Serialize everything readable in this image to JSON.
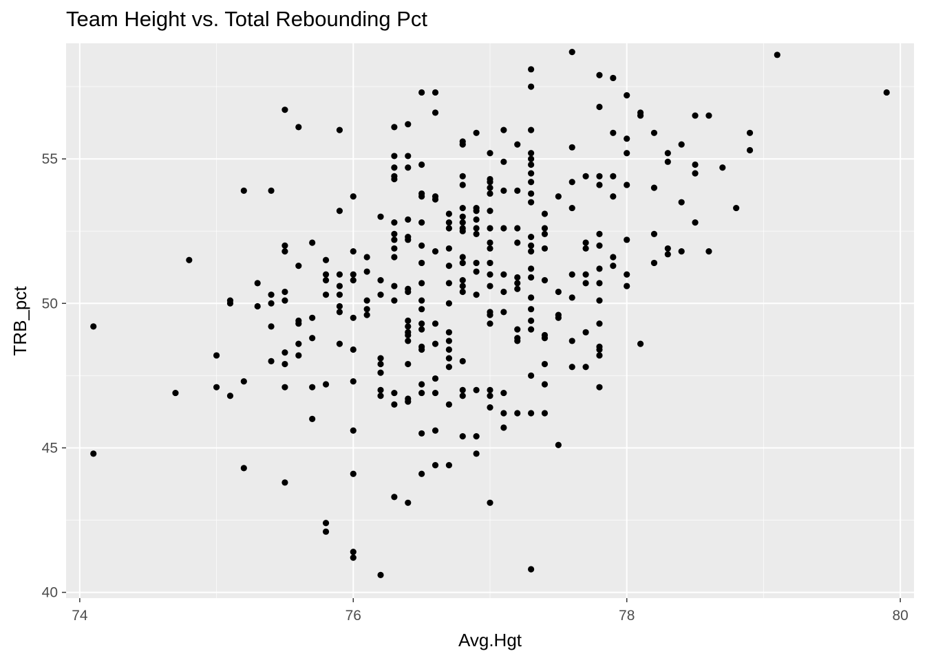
{
  "chart_data": {
    "type": "scatter",
    "title": "Team Height vs. Total Rebounding Pct",
    "xlabel": "Avg.Hgt",
    "ylabel": "TRB_pct",
    "xlim": [
      73.9,
      80.1
    ],
    "ylim": [
      39.8,
      59.0
    ],
    "x_ticks": [
      74,
      76,
      78,
      80
    ],
    "y_ticks": [
      40,
      45,
      50,
      55
    ],
    "grid": true,
    "background_color": "#ebebeb",
    "grid_color": "#ffffff",
    "point_color": "#000000",
    "points": [
      {
        "x": 74.1,
        "y": 49.2
      },
      {
        "x": 74.1,
        "y": 44.8
      },
      {
        "x": 74.7,
        "y": 46.9
      },
      {
        "x": 74.8,
        "y": 51.5
      },
      {
        "x": 75.0,
        "y": 48.2
      },
      {
        "x": 75.0,
        "y": 47.1
      },
      {
        "x": 75.1,
        "y": 50.1
      },
      {
        "x": 75.1,
        "y": 50.0
      },
      {
        "x": 75.1,
        "y": 46.8
      },
      {
        "x": 75.2,
        "y": 53.9
      },
      {
        "x": 75.2,
        "y": 47.3
      },
      {
        "x": 75.2,
        "y": 44.3
      },
      {
        "x": 75.3,
        "y": 50.7
      },
      {
        "x": 75.3,
        "y": 49.9
      },
      {
        "x": 75.4,
        "y": 53.9
      },
      {
        "x": 75.4,
        "y": 50.3
      },
      {
        "x": 75.4,
        "y": 50.0
      },
      {
        "x": 75.4,
        "y": 49.2
      },
      {
        "x": 75.4,
        "y": 48.0
      },
      {
        "x": 75.5,
        "y": 56.7
      },
      {
        "x": 75.5,
        "y": 52.0
      },
      {
        "x": 75.5,
        "y": 51.8
      },
      {
        "x": 75.5,
        "y": 50.4
      },
      {
        "x": 75.5,
        "y": 50.1
      },
      {
        "x": 75.5,
        "y": 48.3
      },
      {
        "x": 75.5,
        "y": 47.9
      },
      {
        "x": 75.5,
        "y": 47.1
      },
      {
        "x": 75.5,
        "y": 43.8
      },
      {
        "x": 75.6,
        "y": 56.1
      },
      {
        "x": 75.6,
        "y": 51.3
      },
      {
        "x": 75.6,
        "y": 49.4
      },
      {
        "x": 75.6,
        "y": 49.3
      },
      {
        "x": 75.6,
        "y": 48.6
      },
      {
        "x": 75.6,
        "y": 48.2
      },
      {
        "x": 75.7,
        "y": 52.1
      },
      {
        "x": 75.7,
        "y": 49.5
      },
      {
        "x": 75.7,
        "y": 48.8
      },
      {
        "x": 75.7,
        "y": 47.1
      },
      {
        "x": 75.7,
        "y": 46.0
      },
      {
        "x": 75.8,
        "y": 51.5
      },
      {
        "x": 75.8,
        "y": 51.0
      },
      {
        "x": 75.8,
        "y": 50.8
      },
      {
        "x": 75.8,
        "y": 50.3
      },
      {
        "x": 75.8,
        "y": 47.2
      },
      {
        "x": 75.8,
        "y": 42.4
      },
      {
        "x": 75.8,
        "y": 42.1
      },
      {
        "x": 75.9,
        "y": 56.0
      },
      {
        "x": 75.9,
        "y": 53.2
      },
      {
        "x": 75.9,
        "y": 51.0
      },
      {
        "x": 75.9,
        "y": 50.6
      },
      {
        "x": 75.9,
        "y": 50.3
      },
      {
        "x": 75.9,
        "y": 49.9
      },
      {
        "x": 75.9,
        "y": 49.7
      },
      {
        "x": 75.9,
        "y": 48.6
      },
      {
        "x": 76.0,
        "y": 53.7
      },
      {
        "x": 76.0,
        "y": 51.8
      },
      {
        "x": 76.0,
        "y": 51.0
      },
      {
        "x": 76.0,
        "y": 50.8
      },
      {
        "x": 76.0,
        "y": 49.5
      },
      {
        "x": 76.0,
        "y": 48.4
      },
      {
        "x": 76.0,
        "y": 47.3
      },
      {
        "x": 76.0,
        "y": 45.6
      },
      {
        "x": 76.0,
        "y": 44.1
      },
      {
        "x": 76.0,
        "y": 41.4
      },
      {
        "x": 76.0,
        "y": 41.2
      },
      {
        "x": 76.1,
        "y": 51.6
      },
      {
        "x": 76.1,
        "y": 51.1
      },
      {
        "x": 76.1,
        "y": 50.1
      },
      {
        "x": 76.1,
        "y": 49.8
      },
      {
        "x": 76.1,
        "y": 49.6
      },
      {
        "x": 76.2,
        "y": 53.0
      },
      {
        "x": 76.2,
        "y": 50.8
      },
      {
        "x": 76.2,
        "y": 50.3
      },
      {
        "x": 76.2,
        "y": 48.1
      },
      {
        "x": 76.2,
        "y": 47.9
      },
      {
        "x": 76.2,
        "y": 47.6
      },
      {
        "x": 76.2,
        "y": 47.0
      },
      {
        "x": 76.2,
        "y": 46.8
      },
      {
        "x": 76.2,
        "y": 40.6
      },
      {
        "x": 76.3,
        "y": 56.1
      },
      {
        "x": 76.3,
        "y": 55.1
      },
      {
        "x": 76.3,
        "y": 54.7
      },
      {
        "x": 76.3,
        "y": 54.4
      },
      {
        "x": 76.3,
        "y": 54.3
      },
      {
        "x": 76.3,
        "y": 52.8
      },
      {
        "x": 76.3,
        "y": 52.4
      },
      {
        "x": 76.3,
        "y": 52.2
      },
      {
        "x": 76.3,
        "y": 51.9
      },
      {
        "x": 76.3,
        "y": 51.6
      },
      {
        "x": 76.3,
        "y": 50.6
      },
      {
        "x": 76.3,
        "y": 50.1
      },
      {
        "x": 76.3,
        "y": 46.9
      },
      {
        "x": 76.3,
        "y": 46.5
      },
      {
        "x": 76.3,
        "y": 43.3
      },
      {
        "x": 76.4,
        "y": 56.2
      },
      {
        "x": 76.4,
        "y": 55.1
      },
      {
        "x": 76.4,
        "y": 54.7
      },
      {
        "x": 76.4,
        "y": 52.9
      },
      {
        "x": 76.4,
        "y": 52.3
      },
      {
        "x": 76.4,
        "y": 52.2
      },
      {
        "x": 76.4,
        "y": 50.5
      },
      {
        "x": 76.4,
        "y": 50.4
      },
      {
        "x": 76.4,
        "y": 49.4
      },
      {
        "x": 76.4,
        "y": 49.2
      },
      {
        "x": 76.4,
        "y": 49.0
      },
      {
        "x": 76.4,
        "y": 48.9
      },
      {
        "x": 76.4,
        "y": 48.7
      },
      {
        "x": 76.4,
        "y": 47.9
      },
      {
        "x": 76.4,
        "y": 46.7
      },
      {
        "x": 76.4,
        "y": 46.6
      },
      {
        "x": 76.4,
        "y": 43.1
      },
      {
        "x": 76.5,
        "y": 57.3
      },
      {
        "x": 76.5,
        "y": 54.8
      },
      {
        "x": 76.5,
        "y": 53.8
      },
      {
        "x": 76.5,
        "y": 53.7
      },
      {
        "x": 76.5,
        "y": 52.8
      },
      {
        "x": 76.5,
        "y": 52.0
      },
      {
        "x": 76.5,
        "y": 51.4
      },
      {
        "x": 76.5,
        "y": 50.7
      },
      {
        "x": 76.5,
        "y": 50.1
      },
      {
        "x": 76.5,
        "y": 49.8
      },
      {
        "x": 76.5,
        "y": 49.3
      },
      {
        "x": 76.5,
        "y": 49.1
      },
      {
        "x": 76.5,
        "y": 48.5
      },
      {
        "x": 76.5,
        "y": 48.4
      },
      {
        "x": 76.5,
        "y": 47.2
      },
      {
        "x": 76.5,
        "y": 46.9
      },
      {
        "x": 76.5,
        "y": 45.5
      },
      {
        "x": 76.5,
        "y": 44.1
      },
      {
        "x": 76.6,
        "y": 57.3
      },
      {
        "x": 76.6,
        "y": 56.6
      },
      {
        "x": 76.6,
        "y": 53.7
      },
      {
        "x": 76.6,
        "y": 53.6
      },
      {
        "x": 76.6,
        "y": 51.8
      },
      {
        "x": 76.6,
        "y": 49.3
      },
      {
        "x": 76.6,
        "y": 48.6
      },
      {
        "x": 76.6,
        "y": 47.4
      },
      {
        "x": 76.6,
        "y": 46.9
      },
      {
        "x": 76.6,
        "y": 45.6
      },
      {
        "x": 76.6,
        "y": 44.4
      },
      {
        "x": 76.7,
        "y": 53.1
      },
      {
        "x": 76.7,
        "y": 52.8
      },
      {
        "x": 76.7,
        "y": 52.6
      },
      {
        "x": 76.7,
        "y": 51.9
      },
      {
        "x": 76.7,
        "y": 51.3
      },
      {
        "x": 76.7,
        "y": 50.7
      },
      {
        "x": 76.7,
        "y": 50.0
      },
      {
        "x": 76.7,
        "y": 49.0
      },
      {
        "x": 76.7,
        "y": 48.7
      },
      {
        "x": 76.7,
        "y": 48.4
      },
      {
        "x": 76.7,
        "y": 48.1
      },
      {
        "x": 76.7,
        "y": 47.8
      },
      {
        "x": 76.7,
        "y": 46.5
      },
      {
        "x": 76.7,
        "y": 44.4
      },
      {
        "x": 76.8,
        "y": 55.6
      },
      {
        "x": 76.8,
        "y": 55.5
      },
      {
        "x": 76.8,
        "y": 54.4
      },
      {
        "x": 76.8,
        "y": 54.1
      },
      {
        "x": 76.8,
        "y": 53.3
      },
      {
        "x": 76.8,
        "y": 53.0
      },
      {
        "x": 76.8,
        "y": 52.8
      },
      {
        "x": 76.8,
        "y": 52.6
      },
      {
        "x": 76.8,
        "y": 52.5
      },
      {
        "x": 76.8,
        "y": 51.6
      },
      {
        "x": 76.8,
        "y": 51.4
      },
      {
        "x": 76.8,
        "y": 50.8
      },
      {
        "x": 76.8,
        "y": 50.6
      },
      {
        "x": 76.8,
        "y": 50.4
      },
      {
        "x": 76.8,
        "y": 48.0
      },
      {
        "x": 76.8,
        "y": 47.0
      },
      {
        "x": 76.8,
        "y": 46.8
      },
      {
        "x": 76.8,
        "y": 45.4
      },
      {
        "x": 76.9,
        "y": 55.9
      },
      {
        "x": 76.9,
        "y": 53.3
      },
      {
        "x": 76.9,
        "y": 53.2
      },
      {
        "x": 76.9,
        "y": 52.9
      },
      {
        "x": 76.9,
        "y": 52.6
      },
      {
        "x": 76.9,
        "y": 52.4
      },
      {
        "x": 76.9,
        "y": 51.4
      },
      {
        "x": 76.9,
        "y": 51.1
      },
      {
        "x": 76.9,
        "y": 50.3
      },
      {
        "x": 76.9,
        "y": 47.0
      },
      {
        "x": 76.9,
        "y": 45.4
      },
      {
        "x": 76.9,
        "y": 44.8
      },
      {
        "x": 77.0,
        "y": 55.2
      },
      {
        "x": 77.0,
        "y": 54.3
      },
      {
        "x": 77.0,
        "y": 54.2
      },
      {
        "x": 77.0,
        "y": 54.0
      },
      {
        "x": 77.0,
        "y": 53.8
      },
      {
        "x": 77.0,
        "y": 53.2
      },
      {
        "x": 77.0,
        "y": 52.6
      },
      {
        "x": 77.0,
        "y": 52.1
      },
      {
        "x": 77.0,
        "y": 51.9
      },
      {
        "x": 77.0,
        "y": 51.4
      },
      {
        "x": 77.0,
        "y": 51.0
      },
      {
        "x": 77.0,
        "y": 50.6
      },
      {
        "x": 77.0,
        "y": 49.7
      },
      {
        "x": 77.0,
        "y": 49.6
      },
      {
        "x": 77.0,
        "y": 49.3
      },
      {
        "x": 77.0,
        "y": 47.0
      },
      {
        "x": 77.0,
        "y": 46.8
      },
      {
        "x": 77.0,
        "y": 46.4
      },
      {
        "x": 77.0,
        "y": 43.1
      },
      {
        "x": 77.1,
        "y": 56.0
      },
      {
        "x": 77.1,
        "y": 54.9
      },
      {
        "x": 77.1,
        "y": 53.9
      },
      {
        "x": 77.1,
        "y": 52.6
      },
      {
        "x": 77.1,
        "y": 51.0
      },
      {
        "x": 77.1,
        "y": 50.4
      },
      {
        "x": 77.1,
        "y": 49.7
      },
      {
        "x": 77.1,
        "y": 46.9
      },
      {
        "x": 77.1,
        "y": 46.2
      },
      {
        "x": 77.1,
        "y": 45.7
      },
      {
        "x": 77.2,
        "y": 55.5
      },
      {
        "x": 77.2,
        "y": 53.9
      },
      {
        "x": 77.2,
        "y": 52.6
      },
      {
        "x": 77.2,
        "y": 52.1
      },
      {
        "x": 77.2,
        "y": 50.9
      },
      {
        "x": 77.2,
        "y": 50.7
      },
      {
        "x": 77.2,
        "y": 50.5
      },
      {
        "x": 77.2,
        "y": 49.1
      },
      {
        "x": 77.2,
        "y": 48.8
      },
      {
        "x": 77.2,
        "y": 48.7
      },
      {
        "x": 77.2,
        "y": 46.2
      },
      {
        "x": 77.3,
        "y": 58.1
      },
      {
        "x": 77.3,
        "y": 57.5
      },
      {
        "x": 77.3,
        "y": 56.0
      },
      {
        "x": 77.3,
        "y": 55.2
      },
      {
        "x": 77.3,
        "y": 55.0
      },
      {
        "x": 77.3,
        "y": 54.8
      },
      {
        "x": 77.3,
        "y": 54.5
      },
      {
        "x": 77.3,
        "y": 54.2
      },
      {
        "x": 77.3,
        "y": 53.8
      },
      {
        "x": 77.3,
        "y": 53.5
      },
      {
        "x": 77.3,
        "y": 52.3
      },
      {
        "x": 77.3,
        "y": 52.0
      },
      {
        "x": 77.3,
        "y": 51.8
      },
      {
        "x": 77.3,
        "y": 51.2
      },
      {
        "x": 77.3,
        "y": 50.9
      },
      {
        "x": 77.3,
        "y": 50.2
      },
      {
        "x": 77.3,
        "y": 49.8
      },
      {
        "x": 77.3,
        "y": 49.4
      },
      {
        "x": 77.3,
        "y": 49.1
      },
      {
        "x": 77.3,
        "y": 47.5
      },
      {
        "x": 77.3,
        "y": 46.2
      },
      {
        "x": 77.3,
        "y": 40.8
      },
      {
        "x": 77.4,
        "y": 53.1
      },
      {
        "x": 77.4,
        "y": 52.6
      },
      {
        "x": 77.4,
        "y": 52.4
      },
      {
        "x": 77.4,
        "y": 51.9
      },
      {
        "x": 77.4,
        "y": 50.8
      },
      {
        "x": 77.4,
        "y": 48.9
      },
      {
        "x": 77.4,
        "y": 48.8
      },
      {
        "x": 77.4,
        "y": 47.9
      },
      {
        "x": 77.4,
        "y": 47.2
      },
      {
        "x": 77.4,
        "y": 46.2
      },
      {
        "x": 77.5,
        "y": 53.7
      },
      {
        "x": 77.5,
        "y": 50.4
      },
      {
        "x": 77.5,
        "y": 49.6
      },
      {
        "x": 77.5,
        "y": 49.5
      },
      {
        "x": 77.5,
        "y": 45.1
      },
      {
        "x": 77.6,
        "y": 58.7
      },
      {
        "x": 77.6,
        "y": 55.4
      },
      {
        "x": 77.6,
        "y": 54.2
      },
      {
        "x": 77.6,
        "y": 53.3
      },
      {
        "x": 77.6,
        "y": 51.0
      },
      {
        "x": 77.6,
        "y": 50.2
      },
      {
        "x": 77.6,
        "y": 48.7
      },
      {
        "x": 77.6,
        "y": 47.8
      },
      {
        "x": 77.7,
        "y": 54.4
      },
      {
        "x": 77.7,
        "y": 52.1
      },
      {
        "x": 77.7,
        "y": 51.9
      },
      {
        "x": 77.7,
        "y": 51.0
      },
      {
        "x": 77.7,
        "y": 50.7
      },
      {
        "x": 77.7,
        "y": 49.0
      },
      {
        "x": 77.7,
        "y": 47.8
      },
      {
        "x": 77.8,
        "y": 57.9
      },
      {
        "x": 77.8,
        "y": 56.8
      },
      {
        "x": 77.8,
        "y": 54.4
      },
      {
        "x": 77.8,
        "y": 54.1
      },
      {
        "x": 77.8,
        "y": 52.4
      },
      {
        "x": 77.8,
        "y": 52.0
      },
      {
        "x": 77.8,
        "y": 51.2
      },
      {
        "x": 77.8,
        "y": 50.7
      },
      {
        "x": 77.8,
        "y": 50.1
      },
      {
        "x": 77.8,
        "y": 49.3
      },
      {
        "x": 77.8,
        "y": 48.5
      },
      {
        "x": 77.8,
        "y": 48.4
      },
      {
        "x": 77.8,
        "y": 48.2
      },
      {
        "x": 77.8,
        "y": 47.1
      },
      {
        "x": 77.9,
        "y": 57.8
      },
      {
        "x": 77.9,
        "y": 55.9
      },
      {
        "x": 77.9,
        "y": 54.4
      },
      {
        "x": 77.9,
        "y": 53.7
      },
      {
        "x": 77.9,
        "y": 51.6
      },
      {
        "x": 77.9,
        "y": 51.3
      },
      {
        "x": 78.0,
        "y": 57.2
      },
      {
        "x": 78.0,
        "y": 55.7
      },
      {
        "x": 78.0,
        "y": 55.2
      },
      {
        "x": 78.0,
        "y": 54.1
      },
      {
        "x": 78.0,
        "y": 52.2
      },
      {
        "x": 78.0,
        "y": 51.0
      },
      {
        "x": 78.0,
        "y": 50.6
      },
      {
        "x": 78.1,
        "y": 56.6
      },
      {
        "x": 78.1,
        "y": 56.5
      },
      {
        "x": 78.1,
        "y": 48.6
      },
      {
        "x": 78.2,
        "y": 55.9
      },
      {
        "x": 78.2,
        "y": 54.0
      },
      {
        "x": 78.2,
        "y": 52.4
      },
      {
        "x": 78.2,
        "y": 51.4
      },
      {
        "x": 78.3,
        "y": 55.2
      },
      {
        "x": 78.3,
        "y": 54.9
      },
      {
        "x": 78.3,
        "y": 51.9
      },
      {
        "x": 78.3,
        "y": 51.7
      },
      {
        "x": 78.4,
        "y": 55.5
      },
      {
        "x": 78.4,
        "y": 53.5
      },
      {
        "x": 78.4,
        "y": 51.8
      },
      {
        "x": 78.5,
        "y": 56.5
      },
      {
        "x": 78.5,
        "y": 54.8
      },
      {
        "x": 78.5,
        "y": 54.5
      },
      {
        "x": 78.5,
        "y": 52.8
      },
      {
        "x": 78.6,
        "y": 56.5
      },
      {
        "x": 78.6,
        "y": 51.8
      },
      {
        "x": 78.7,
        "y": 54.7
      },
      {
        "x": 78.8,
        "y": 53.3
      },
      {
        "x": 78.9,
        "y": 55.9
      },
      {
        "x": 78.9,
        "y": 55.3
      },
      {
        "x": 79.1,
        "y": 58.6
      },
      {
        "x": 79.9,
        "y": 57.3
      }
    ]
  }
}
